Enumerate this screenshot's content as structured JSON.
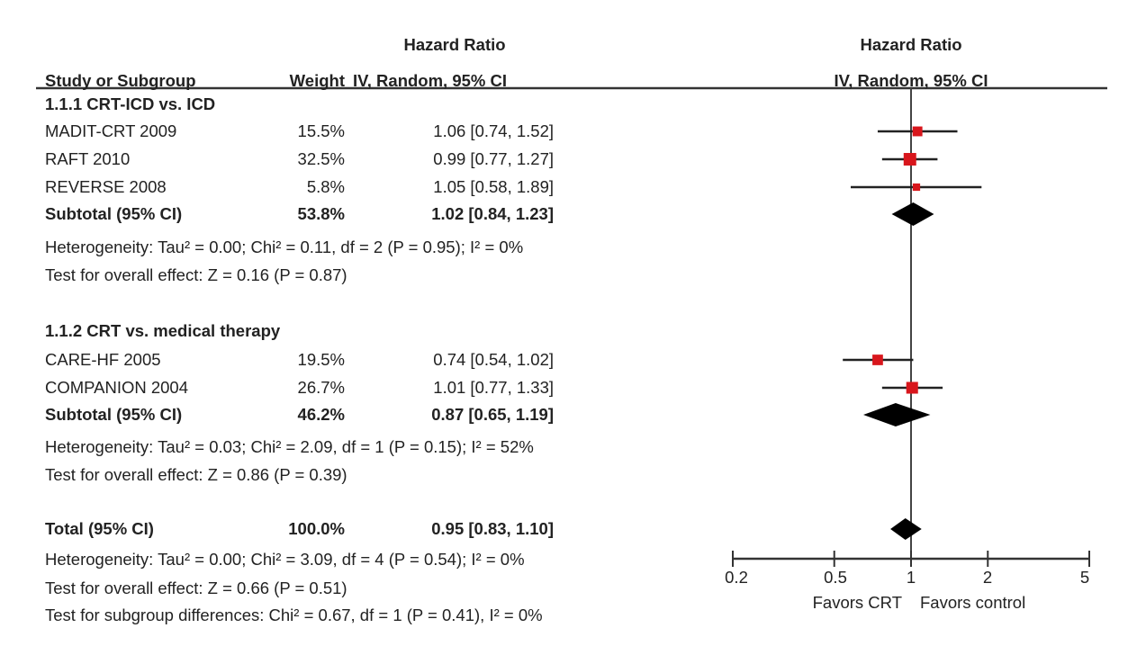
{
  "header": {
    "effect_title": "Hazard Ratio",
    "effect_method": "IV, Random, 95% CI",
    "study_col": "Study or Subgroup",
    "weight_col": "Weight",
    "plot_title": "Hazard Ratio",
    "plot_method": "IV, Random, 95% CI"
  },
  "subgroups": [
    {
      "label": "1.1.1 CRT-ICD vs. ICD",
      "studies": [
        {
          "name": "MADIT-CRT 2009",
          "weight": "15.5%",
          "ci_text": "1.06 [0.74, 1.52]",
          "hr": 1.06,
          "lo": 0.74,
          "hi": 1.52,
          "w": 15.5
        },
        {
          "name": "RAFT 2010",
          "weight": "32.5%",
          "ci_text": "0.99 [0.77, 1.27]",
          "hr": 0.99,
          "lo": 0.77,
          "hi": 1.27,
          "w": 32.5
        },
        {
          "name": "REVERSE 2008",
          "weight": "5.8%",
          "ci_text": "1.05 [0.58, 1.89]",
          "hr": 1.05,
          "lo": 0.58,
          "hi": 1.89,
          "w": 5.8
        }
      ],
      "subtotal": {
        "label": "Subtotal (95% CI)",
        "weight": "53.8%",
        "ci_text": "1.02 [0.84, 1.23]",
        "hr": 1.02,
        "lo": 0.84,
        "hi": 1.23
      },
      "heterogeneity": "Heterogeneity: Tau² = 0.00; Chi² = 0.11, df = 2 (P = 0.95); I² = 0%",
      "overall": "Test for overall effect: Z = 0.16 (P = 0.87)"
    },
    {
      "label": "1.1.2 CRT vs. medical therapy",
      "studies": [
        {
          "name": "CARE-HF 2005",
          "weight": "19.5%",
          "ci_text": "0.74 [0.54, 1.02]",
          "hr": 0.74,
          "lo": 0.54,
          "hi": 1.02,
          "w": 19.5
        },
        {
          "name": "COMPANION 2004",
          "weight": "26.7%",
          "ci_text": "1.01 [0.77, 1.33]",
          "hr": 1.01,
          "lo": 0.77,
          "hi": 1.33,
          "w": 26.7
        }
      ],
      "subtotal": {
        "label": "Subtotal (95% CI)",
        "weight": "46.2%",
        "ci_text": "0.87 [0.65, 1.19]",
        "hr": 0.87,
        "lo": 0.65,
        "hi": 1.19
      },
      "heterogeneity": "Heterogeneity: Tau² = 0.03; Chi² = 2.09, df = 1 (P = 0.15); I² = 52%",
      "overall": "Test for overall effect: Z = 0.86 (P = 0.39)"
    }
  ],
  "total": {
    "label": "Total (95% CI)",
    "weight": "100.0%",
    "ci_text": "0.95 [0.83, 1.10]",
    "hr": 0.95,
    "lo": 0.83,
    "hi": 1.1,
    "heterogeneity": "Heterogeneity: Tau² = 0.00; Chi² = 3.09, df = 4 (P = 0.54); I² = 0%",
    "overall": "Test for overall effect: Z = 0.66 (P = 0.51)",
    "subgroup_diff": "Test for subgroup differences: Chi² = 0.67, df = 1 (P = 0.41), I² = 0%"
  },
  "chart_data": {
    "type": "forest",
    "x_scale": "log",
    "xlim": [
      0.2,
      5
    ],
    "ticks": [
      "0.2",
      "0.5",
      "1",
      "2",
      "5"
    ],
    "tick_values": [
      0.2,
      0.5,
      1,
      2,
      5
    ],
    "reference_line": 1,
    "left_label": "Favors CRT",
    "right_label": "Favors control",
    "colors": {
      "study_marker": "#d8161c",
      "summary_diamond": "#000000",
      "lines": "#222222"
    }
  }
}
